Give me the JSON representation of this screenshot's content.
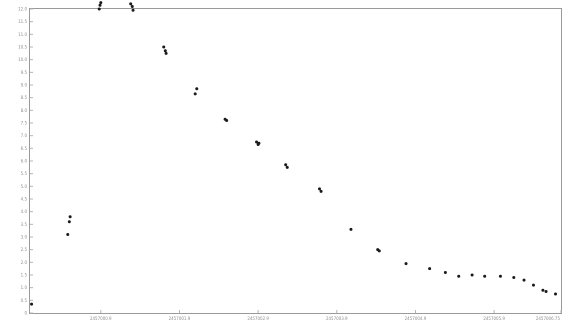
{
  "chart_data": {
    "type": "scatter",
    "title": "",
    "xlabel": "",
    "ylabel": "",
    "grid": false,
    "legend": "none",
    "marker_color": "#1a1a1a",
    "xlim": [
      2457000.0,
      2457006.75
    ],
    "ylim": [
      0,
      12
    ],
    "x_ticks": [
      {
        "value": 2457000.9,
        "label": "2457000.9"
      },
      {
        "value": 2457001.9,
        "label": "2457001.9"
      },
      {
        "value": 2457002.9,
        "label": "2457002.9"
      },
      {
        "value": 2457003.9,
        "label": "2457003.9"
      },
      {
        "value": 2457004.9,
        "label": "2457004.9"
      },
      {
        "value": 2457005.9,
        "label": "2457005.9"
      },
      {
        "value": 2457006.75,
        "label": "2457006.75"
      }
    ],
    "y_ticks": [
      {
        "value": 0,
        "label": "0"
      },
      {
        "value": 0.5,
        "label": "0.5"
      },
      {
        "value": 1,
        "label": "1.0"
      },
      {
        "value": 1.5,
        "label": "1.5"
      },
      {
        "value": 2,
        "label": "2.0"
      },
      {
        "value": 2.5,
        "label": "2.5"
      },
      {
        "value": 3,
        "label": "3.0"
      },
      {
        "value": 3.5,
        "label": "3.5"
      },
      {
        "value": 4,
        "label": "4.0"
      },
      {
        "value": 4.5,
        "label": "4.5"
      },
      {
        "value": 5,
        "label": "5.0"
      },
      {
        "value": 5.5,
        "label": "5.5"
      },
      {
        "value": 6,
        "label": "6.0"
      },
      {
        "value": 6.5,
        "label": "6.5"
      },
      {
        "value": 7,
        "label": "7.0"
      },
      {
        "value": 7.5,
        "label": "7.5"
      },
      {
        "value": 8,
        "label": "8.0"
      },
      {
        "value": 8.5,
        "label": "8.5"
      },
      {
        "value": 9,
        "label": "9.0"
      },
      {
        "value": 9.5,
        "label": "9.5"
      },
      {
        "value": 10,
        "label": "10.0"
      },
      {
        "value": 10.5,
        "label": "10.5"
      },
      {
        "value": 11,
        "label": "11.0"
      },
      {
        "value": 11.5,
        "label": "11.5"
      },
      {
        "value": 12,
        "label": "12.0"
      }
    ],
    "series": [
      {
        "points": [
          [
            2457000.02,
            0.35
          ],
          [
            2457000.48,
            3.1
          ],
          [
            2457000.5,
            3.6
          ],
          [
            2457000.51,
            3.8
          ],
          [
            2457000.88,
            12.0
          ],
          [
            2457000.89,
            12.15
          ],
          [
            2457000.9,
            12.25
          ],
          [
            2457001.28,
            12.2
          ],
          [
            2457001.3,
            12.1
          ],
          [
            2457001.31,
            11.95
          ],
          [
            2457001.7,
            10.5
          ],
          [
            2457001.72,
            10.35
          ],
          [
            2457001.73,
            10.25
          ],
          [
            2457002.1,
            8.65
          ],
          [
            2457002.12,
            8.85
          ],
          [
            2457002.48,
            7.65
          ],
          [
            2457002.5,
            7.6
          ],
          [
            2457002.88,
            6.75
          ],
          [
            2457002.9,
            6.65
          ],
          [
            2457002.91,
            6.7
          ],
          [
            2457003.25,
            5.85
          ],
          [
            2457003.27,
            5.75
          ],
          [
            2457003.68,
            4.9
          ],
          [
            2457003.7,
            4.8
          ],
          [
            2457004.08,
            3.3
          ],
          [
            2457004.42,
            2.5
          ],
          [
            2457004.44,
            2.45
          ],
          [
            2457004.78,
            1.95
          ],
          [
            2457005.08,
            1.75
          ],
          [
            2457005.28,
            1.6
          ],
          [
            2457005.45,
            1.45
          ],
          [
            2457005.62,
            1.5
          ],
          [
            2457005.78,
            1.45
          ],
          [
            2457005.98,
            1.45
          ],
          [
            2457006.15,
            1.4
          ],
          [
            2457006.28,
            1.3
          ],
          [
            2457006.4,
            1.1
          ],
          [
            2457006.52,
            0.9
          ],
          [
            2457006.56,
            0.85
          ],
          [
            2457006.68,
            0.75
          ]
        ]
      }
    ]
  }
}
